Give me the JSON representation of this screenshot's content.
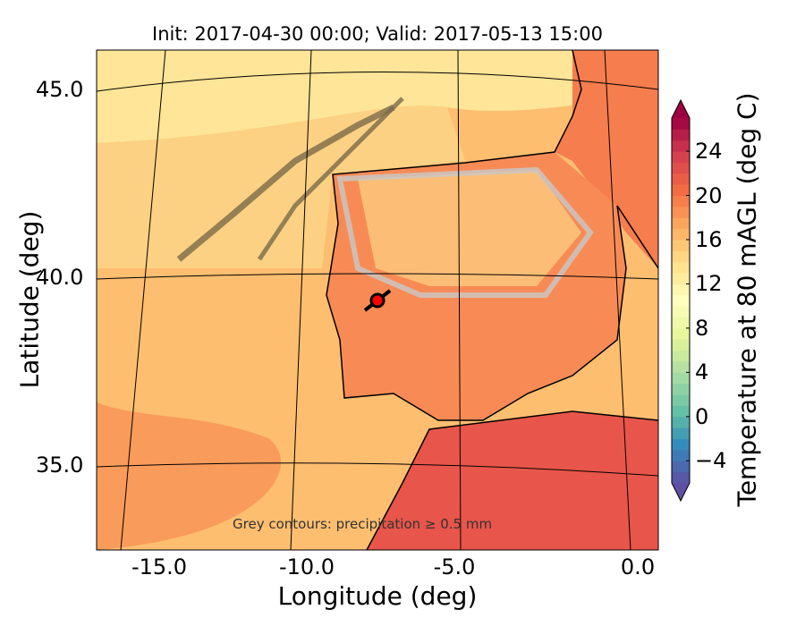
{
  "title": "Init: 2017-04-30 00:00; Valid: 2017-05-13 15:00",
  "annotation": "Grey contours: precipitation ≥ 0.5 mm",
  "chart_data": {
    "type": "map-contour",
    "title": "Init: 2017-04-30 00:00; Valid: 2017-05-13 15:00",
    "xlabel": "Longitude (deg)",
    "ylabel": "Latitude (deg)",
    "xticks": [
      "-15.0",
      "-10.0",
      "-5.0",
      "0.0"
    ],
    "yticks": [
      "45.0",
      "40.0",
      "35.0"
    ],
    "xlim": [
      -16,
      0.1
    ],
    "ylim": [
      32.8,
      46.2
    ],
    "marker": {
      "lon": -7.7,
      "lat": 39.4,
      "color": "#ff0000"
    },
    "colorbar": {
      "label": "Temperature at 80 mAGL (deg C)",
      "ticks": [
        "24",
        "20",
        "16",
        "12",
        "8",
        "4",
        "0",
        "−4"
      ],
      "tick_values": [
        24,
        20,
        16,
        12,
        8,
        4,
        0,
        -4
      ],
      "range": [
        -6,
        27
      ],
      "extend": "both",
      "colormap": "Spectral_r"
    }
  }
}
